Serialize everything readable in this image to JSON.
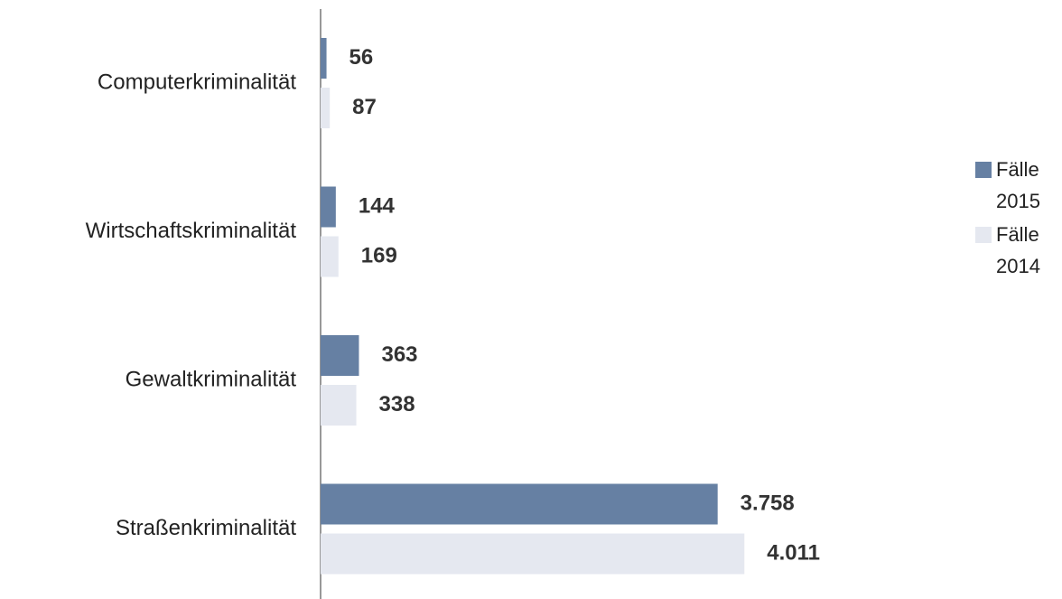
{
  "chart_data": {
    "type": "hbar",
    "categories": [
      "Computerkriminalität",
      "Wirtschaftskriminalität",
      "Gewaltkriminalität",
      "Straßenkriminalität"
    ],
    "series": [
      {
        "name": "Fälle 2015",
        "color": "#6680a3",
        "values": [
          56,
          144,
          363,
          3758
        ],
        "value_labels": [
          "56",
          "144",
          "363",
          "3.758"
        ]
      },
      {
        "name": "Fälle 2014",
        "color": "#e5e8f0",
        "values": [
          87,
          169,
          338,
          4011
        ],
        "value_labels": [
          "87",
          "169",
          "338",
          "4.011"
        ]
      }
    ],
    "legend": "right"
  }
}
